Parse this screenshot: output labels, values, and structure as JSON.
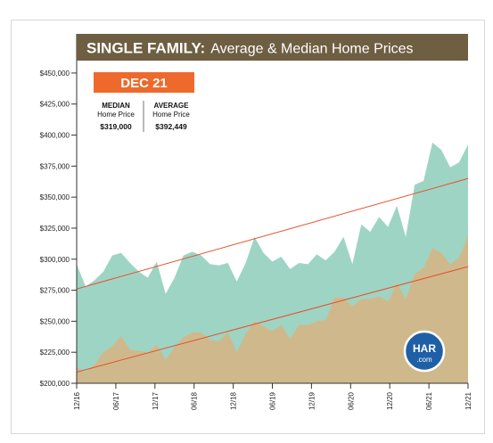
{
  "chart_data": {
    "type": "area",
    "title_bold": "SINGLE FAMILY:",
    "title_rest": "Average & Median Home Prices",
    "callout": {
      "period": "DEC 21",
      "median_label_1": "MEDIAN",
      "median_label_2": "Home Price",
      "median_value": "$319,000",
      "average_label_1": "AVERAGE",
      "average_label_2": "Home Price",
      "average_value": "$392,449"
    },
    "logo": {
      "line1": "HAR",
      "line2": ".com"
    },
    "ylim": [
      200000,
      460000
    ],
    "y_ticks": [
      200000,
      225000,
      250000,
      275000,
      300000,
      325000,
      350000,
      375000,
      400000,
      425000,
      450000
    ],
    "y_tick_labels": [
      "$200,000",
      "$225,000",
      "$250,000",
      "$275,000",
      "$300,000",
      "$325,000",
      "$350,000",
      "$375,000",
      "$400,000",
      "$425,000",
      "$450,000"
    ],
    "x_tick_labels": [
      "12/16",
      "06/17",
      "12/17",
      "06/18",
      "12/18",
      "06/19",
      "12/19",
      "06/20",
      "12/20",
      "06/21",
      "12/21"
    ],
    "colors": {
      "average": "#9ed4c4",
      "median": "#cfb98c",
      "trend": "#e8502a",
      "title_bg": "#6e5e42",
      "callout": "#ee6a2c",
      "logo": "#1f5fa6"
    },
    "series": [
      {
        "name": "AVERAGE",
        "values": [
          296000,
          278000,
          283000,
          290000,
          303000,
          305000,
          297000,
          290000,
          285000,
          298000,
          272000,
          285000,
          303000,
          306000,
          303000,
          296000,
          295000,
          297000,
          282000,
          297000,
          318000,
          305000,
          298000,
          302000,
          292000,
          297000,
          296000,
          304000,
          299000,
          306000,
          318000,
          296000,
          328000,
          322000,
          334000,
          326000,
          343000,
          318000,
          360000,
          363000,
          394000,
          388000,
          374000,
          378000,
          392449
        ]
      },
      {
        "name": "MEDIAN",
        "values": [
          213000,
          209000,
          215000,
          225000,
          230000,
          238000,
          227000,
          226000,
          225000,
          231000,
          219000,
          229000,
          237000,
          241000,
          241000,
          235000,
          234000,
          241000,
          225000,
          240000,
          250000,
          246000,
          242000,
          247000,
          236000,
          247000,
          247000,
          250000,
          251000,
          269000,
          269000,
          262000,
          268000,
          268000,
          270000,
          266000,
          281000,
          268000,
          288000,
          293000,
          309000,
          305000,
          296000,
          301000,
          319000
        ]
      }
    ],
    "trend_lines": [
      {
        "start": 276000,
        "end": 365000
      },
      {
        "start": 209000,
        "end": 294000
      }
    ]
  }
}
